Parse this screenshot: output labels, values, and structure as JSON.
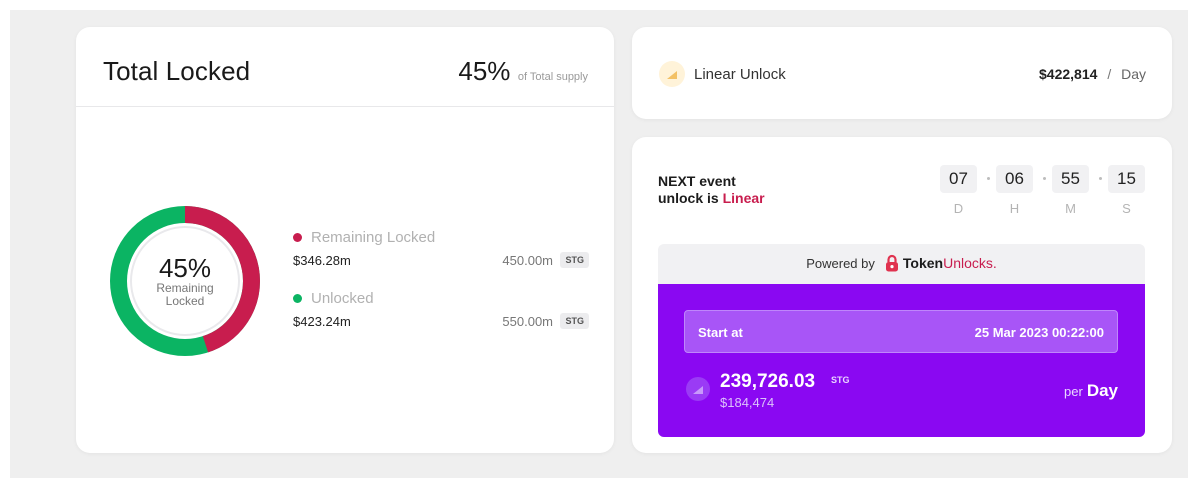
{
  "total_locked": {
    "title": "Total Locked",
    "percent": "45%",
    "percent_suffix": "of Total supply",
    "donut": {
      "center_value": "45%",
      "center_label_line1": "Remaining",
      "center_label_line2": "Locked",
      "locked_fraction": 0.45,
      "locked_color": "#c81d4e",
      "unlocked_color": "#0bb463"
    },
    "legend": [
      {
        "name": "Remaining Locked",
        "usd": "$346.28m",
        "amount": "450.00m",
        "token": "STG",
        "color": "#c81d4e"
      },
      {
        "name": "Unlocked",
        "usd": "$423.24m",
        "amount": "550.00m",
        "token": "STG",
        "color": "#0bb463"
      }
    ]
  },
  "linear_unlock": {
    "label": "Linear Unlock",
    "amount": "$422,814",
    "separator": "/",
    "unit": "Day",
    "icon": "wedge-chart-icon"
  },
  "next_event": {
    "line1": "NEXT event",
    "line2_prefix": "unlock is",
    "line2_highlight": "Linear",
    "countdown": [
      {
        "value": "07",
        "label": "D"
      },
      {
        "value": "06",
        "label": "H"
      },
      {
        "value": "55",
        "label": "M"
      },
      {
        "value": "15",
        "label": "S"
      }
    ],
    "powered_by": "Powered by",
    "brand_token": "Token",
    "brand_unlocks": "Unlocks",
    "brand_dot": ".",
    "start_label": "Start at",
    "start_date": "25 Mar 2023 00:22:00",
    "amount": "239,726.03",
    "amount_token": "STG",
    "amount_usd": "$184,474",
    "per_word": "per",
    "per_unit": "Day"
  },
  "colors": {
    "accent_purple": "#8a08f2",
    "brand_red": "#c81d4e",
    "green": "#0bb463"
  }
}
